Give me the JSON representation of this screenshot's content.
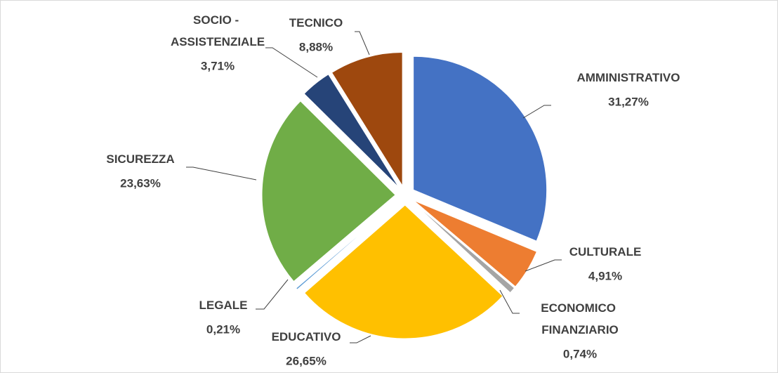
{
  "chart_data": {
    "type": "pie",
    "categories": [
      "AMMINISTRATIVO",
      "CULTURALE",
      "ECONOMICO FINANZIARIO",
      "EDUCATIVO",
      "LEGALE",
      "SICUREZZA",
      "SOCIO - ASSISTENZIALE",
      "TECNICO"
    ],
    "values": [
      31.27,
      4.91,
      0.74,
      26.65,
      0.21,
      23.63,
      3.71,
      8.88
    ],
    "value_labels": [
      "31,27%",
      "4,91%",
      "0,74%",
      "26,65%",
      "0,21%",
      "23,63%",
      "3,71%",
      "8,88%"
    ],
    "colors": [
      "#4472c4",
      "#ed7d31",
      "#a5a5a5",
      "#ffc000",
      "#5b9bd5",
      "#70ad47",
      "#264478",
      "#9e480e"
    ]
  }
}
